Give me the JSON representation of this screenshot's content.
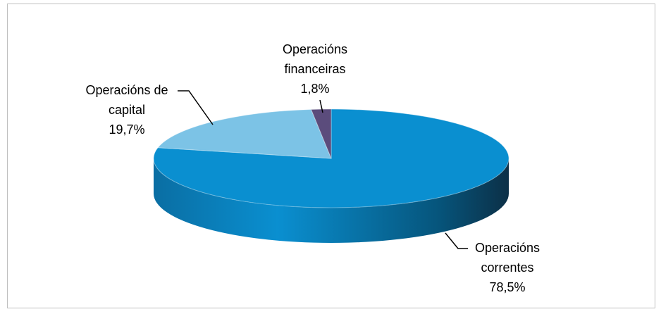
{
  "chart_data": {
    "type": "pie3d",
    "categories": [
      "Operacións correntes",
      "Operacións de capital",
      "Operacións financeiras"
    ],
    "values": [
      78.5,
      19.7,
      1.8
    ],
    "value_labels": [
      "78,5%",
      "19,7%",
      "1,8%"
    ],
    "colors": [
      "#0a8fd0",
      "#7cc3e6",
      "#5b4c7c"
    ]
  }
}
